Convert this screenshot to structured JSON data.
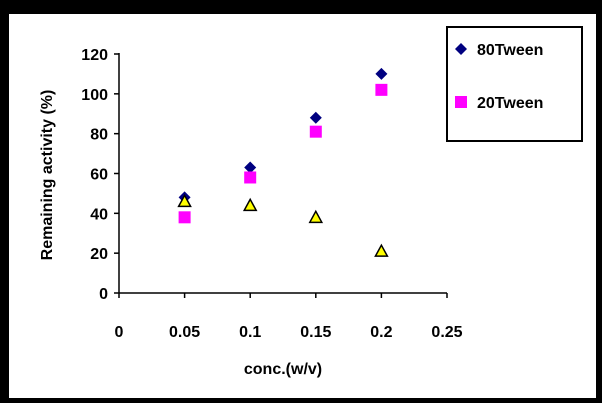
{
  "chart_data": {
    "type": "scatter",
    "xlabel": "conc.(w/v)",
    "ylabel": "Remaining activity (%)",
    "xlim": [
      0,
      0.25
    ],
    "ylim": [
      0,
      120
    ],
    "x_ticks": [
      "0",
      "0.05",
      "0.1",
      "0.15",
      "0.2",
      "0.25"
    ],
    "y_ticks": [
      "0",
      "20",
      "40",
      "60",
      "80",
      "100",
      "120"
    ],
    "grid": false,
    "legend_position": "top-right",
    "series": [
      {
        "name": "80Tween",
        "marker": "diamond",
        "color": "#000080",
        "x": [
          0.05,
          0.1,
          0.15,
          0.2
        ],
        "y": [
          48,
          63,
          88,
          110
        ],
        "in_legend": true
      },
      {
        "name": "20Tween",
        "marker": "square",
        "color": "#FF00FF",
        "x": [
          0.05,
          0.1,
          0.15,
          0.2
        ],
        "y": [
          38,
          58,
          81,
          102
        ],
        "in_legend": true
      },
      {
        "name": "",
        "marker": "triangle",
        "color": "#FFFF00",
        "stroke": "#000000",
        "x": [
          0.05,
          0.1,
          0.15,
          0.2
        ],
        "y": [
          46,
          44,
          38,
          21
        ],
        "in_legend": false
      }
    ]
  }
}
